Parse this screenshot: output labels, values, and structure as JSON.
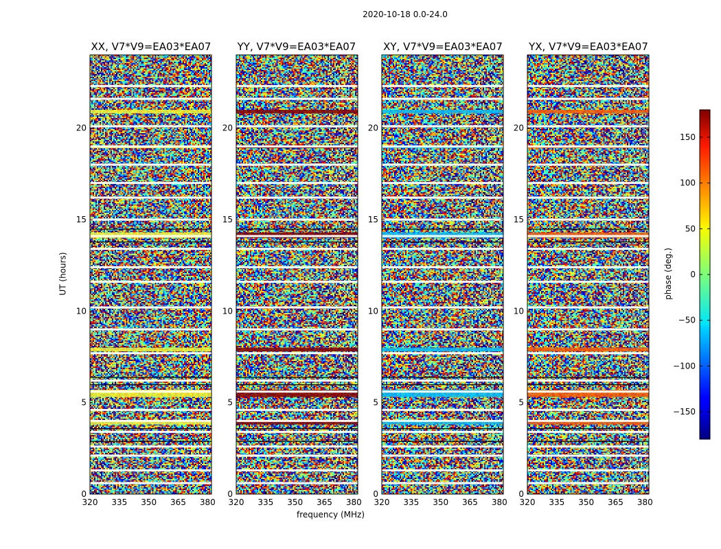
{
  "chart_data": {
    "type": "heatmap",
    "title": "2020-10-18 0.0-24.0",
    "xlabel": "frequency (MHz)",
    "ylabel": "UT (hours)",
    "xlim": [
      320,
      382
    ],
    "ylim": [
      0,
      24
    ],
    "x_ticks": [
      320,
      335,
      350,
      365,
      380
    ],
    "y_ticks": [
      0,
      5,
      10,
      15,
      20
    ],
    "panels": [
      {
        "name": "XX",
        "title": "XX, V7*V9=EA03*EA07",
        "band_color": "#f5f52a"
      },
      {
        "name": "YY",
        "title": "YY, V7*V9=EA03*EA07",
        "band_color": "#8b0000"
      },
      {
        "name": "XY",
        "title": "XY, V7*V9=EA03*EA07",
        "band_color": "#00bfff"
      },
      {
        "name": "YX",
        "title": "YX, V7*V9=EA03*EA07",
        "band_color": "#ff5a00"
      }
    ],
    "colorbar": {
      "label": "phase (deg.)",
      "range": [
        -180,
        180
      ],
      "ticks": [
        -150,
        -100,
        -50,
        0,
        50,
        100,
        150
      ],
      "tick_labels": [
        "−150",
        "−100",
        "−50",
        "0",
        "50",
        "100",
        "150"
      ]
    },
    "gaps_hours": [
      0.6,
      1.3,
      2.1,
      2.6,
      3.4,
      4.0,
      4.6,
      5.6,
      6.2,
      7.7,
      9.0,
      10.2,
      11.6,
      12.4,
      13.4,
      14.1,
      15.0,
      16.2,
      17.0,
      18.0,
      19.0,
      20.1,
      21.6,
      22.3
    ]
  }
}
